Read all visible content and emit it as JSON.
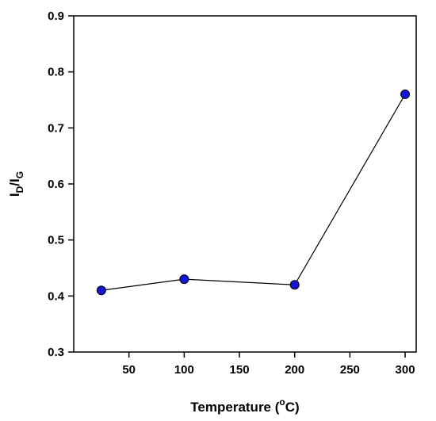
{
  "chart_data": {
    "type": "line",
    "title": "",
    "xlabel": {
      "text": "Temperature (",
      "superscript": "o",
      "suffix": "C)"
    },
    "ylabel": {
      "parts": [
        {
          "text": "I",
          "sub": "D"
        },
        {
          "text": "/I",
          "sub": "G"
        }
      ]
    },
    "xlim": [
      0,
      310
    ],
    "ylim": [
      0.3,
      0.9
    ],
    "x_ticks": [
      50,
      100,
      150,
      200,
      250,
      300
    ],
    "x_tick_labels": [
      "50",
      "100",
      "150",
      "200",
      "250",
      "300"
    ],
    "y_ticks": [
      0.3,
      0.4,
      0.5,
      0.6,
      0.7,
      0.8,
      0.9
    ],
    "y_tick_labels": [
      "0.3",
      "0.4",
      "0.5",
      "0.6",
      "0.7",
      "0.8",
      "0.9"
    ],
    "grid": false,
    "series": [
      {
        "x": [
          25,
          100,
          200,
          300
        ],
        "y": [
          0.41,
          0.43,
          0.42,
          0.76
        ],
        "marker_color": "#1515d6",
        "line_color": "#000000"
      }
    ]
  }
}
